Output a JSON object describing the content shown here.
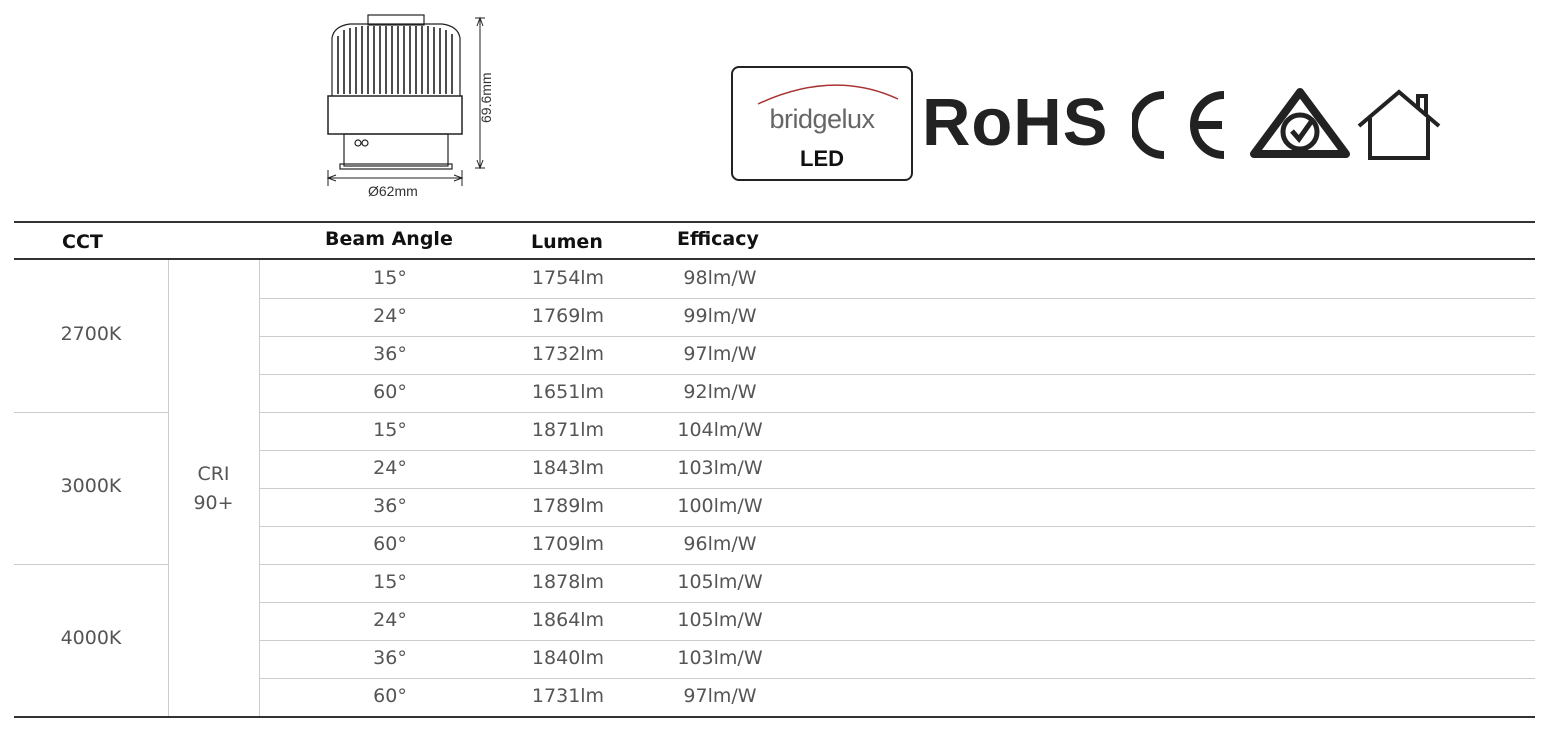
{
  "drawing": {
    "height_label": "69.6mm",
    "diameter_label": "Ø62mm"
  },
  "logos": {
    "bridgelux": "bridgelux",
    "led": "LED",
    "rohs": "RoHS",
    "ce": "CE",
    "rcm": "rcm-mark-icon",
    "indoor": "house-icon"
  },
  "table": {
    "headers": {
      "cct": "CCT",
      "beam": "Beam Angle",
      "lumen": "Lumen",
      "efficacy": "Efficacy"
    },
    "cri": [
      "CRI",
      "90+"
    ],
    "groups": [
      {
        "cct": "2700K",
        "rows": [
          [
            "15°",
            "1754lm",
            "98lm/W"
          ],
          [
            "24°",
            "1769lm",
            "99lm/W"
          ],
          [
            "36°",
            "1732lm",
            "97lm/W"
          ],
          [
            "60°",
            "1651lm",
            "92lm/W"
          ]
        ]
      },
      {
        "cct": "3000K",
        "rows": [
          [
            "15°",
            "1871lm",
            "104lm/W"
          ],
          [
            "24°",
            "1843lm",
            "103lm/W"
          ],
          [
            "36°",
            "1789lm",
            "100lm/W"
          ],
          [
            "60°",
            "1709lm",
            "96lm/W"
          ]
        ]
      },
      {
        "cct": "4000K",
        "rows": [
          [
            "15°",
            "1878lm",
            "105lm/W"
          ],
          [
            "24°",
            "1864lm",
            "105lm/W"
          ],
          [
            "36°",
            "1840lm",
            "103lm/W"
          ],
          [
            "60°",
            "1731lm",
            "97lm/W"
          ]
        ]
      }
    ]
  }
}
